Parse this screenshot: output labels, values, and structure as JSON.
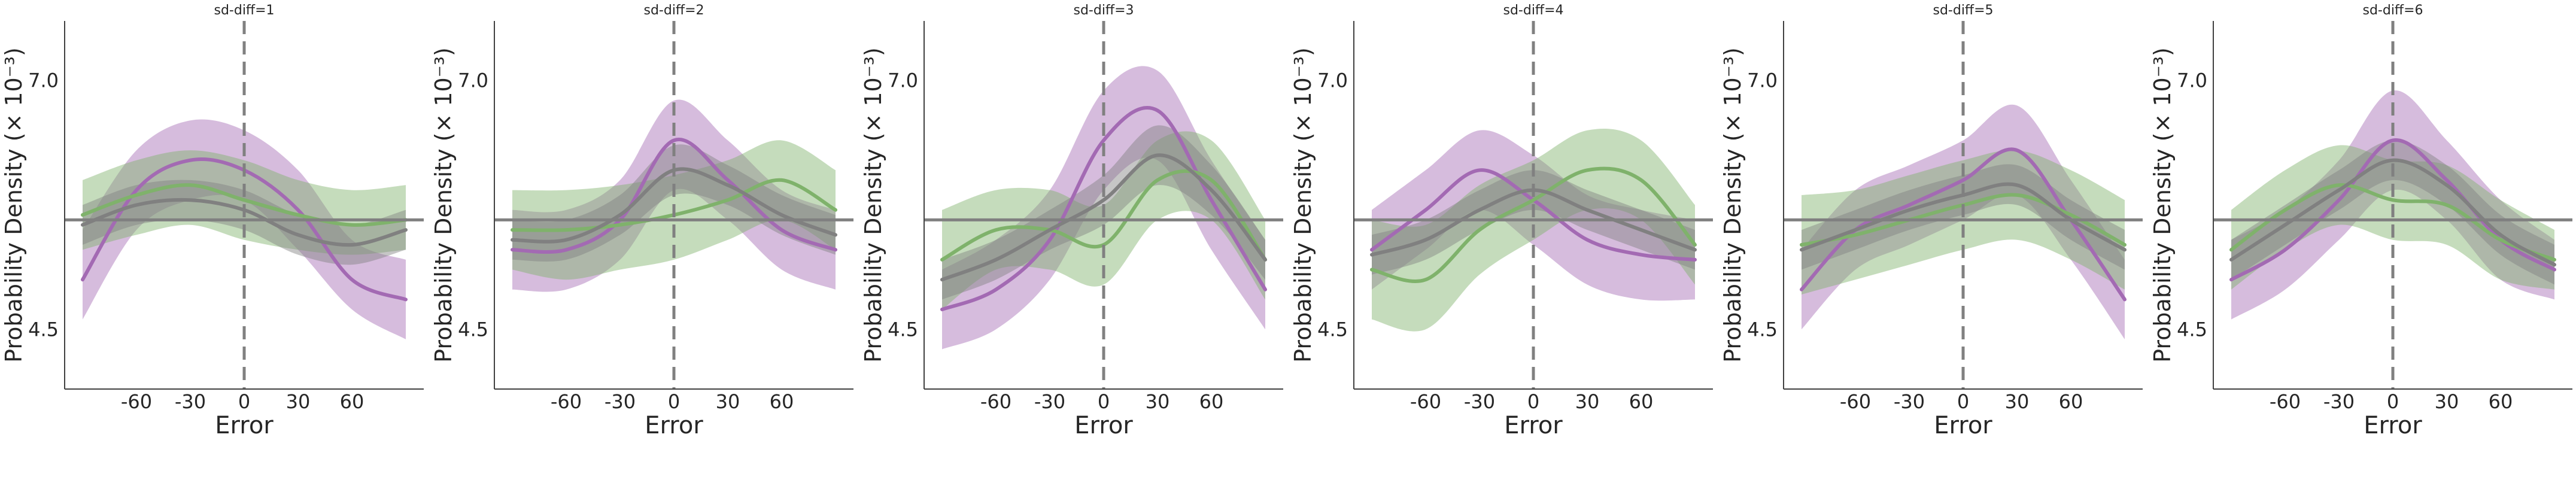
{
  "colors": {
    "purple": "#a36ab3",
    "green": "#7fb26b",
    "gray": "#808080",
    "axis": "#404040"
  },
  "chart_data": [
    {
      "type": "line",
      "title": "sd-diff=1",
      "xlabel": "Error",
      "ylabel": "Probability Density (× 10⁻³)",
      "xlim": [
        -100,
        100
      ],
      "ylim": [
        3.9,
        7.6
      ],
      "xticks": [
        -60,
        -30,
        0,
        30,
        60
      ],
      "yticks": [
        4.5,
        7.0
      ],
      "hline": 5.6,
      "vline": 0,
      "x": [
        -90,
        -60,
        -30,
        0,
        30,
        60,
        90
      ],
      "series": [
        {
          "color": "purple",
          "values": [
            5.0,
            5.9,
            6.2,
            6.1,
            5.7,
            5.0,
            4.8
          ],
          "lower": [
            4.6,
            5.5,
            5.8,
            5.8,
            5.3,
            4.7,
            4.4
          ],
          "upper": [
            5.5,
            6.3,
            6.6,
            6.5,
            6.1,
            5.4,
            5.2
          ]
        },
        {
          "color": "green",
          "values": [
            5.65,
            5.85,
            5.95,
            5.8,
            5.65,
            5.55,
            5.6
          ],
          "lower": [
            5.3,
            5.45,
            5.55,
            5.4,
            5.3,
            5.25,
            5.3
          ],
          "upper": [
            6.0,
            6.2,
            6.3,
            6.2,
            6.0,
            5.9,
            5.95
          ]
        },
        {
          "color": "gray",
          "values": [
            5.55,
            5.75,
            5.8,
            5.7,
            5.45,
            5.35,
            5.5
          ],
          "lower": [
            5.35,
            5.55,
            5.6,
            5.5,
            5.25,
            5.15,
            5.3
          ],
          "upper": [
            5.75,
            5.95,
            6.0,
            5.9,
            5.65,
            5.55,
            5.7
          ]
        }
      ]
    },
    {
      "type": "line",
      "title": "sd-diff=2",
      "xlabel": "Error",
      "ylabel": "Probability Density (× 10⁻³)",
      "xlim": [
        -100,
        100
      ],
      "ylim": [
        3.9,
        7.6
      ],
      "xticks": [
        -60,
        -30,
        0,
        30,
        60
      ],
      "yticks": [
        4.5,
        7.0
      ],
      "hline": 5.6,
      "vline": 0,
      "x": [
        -90,
        -60,
        -30,
        0,
        30,
        60,
        90
      ],
      "series": [
        {
          "color": "purple",
          "values": [
            5.3,
            5.3,
            5.6,
            6.4,
            6.0,
            5.5,
            5.3
          ],
          "lower": [
            4.9,
            4.9,
            5.2,
            5.9,
            5.6,
            5.1,
            4.9
          ],
          "upper": [
            5.7,
            5.7,
            6.0,
            6.8,
            6.4,
            5.9,
            5.7
          ]
        },
        {
          "color": "green",
          "values": [
            5.5,
            5.5,
            5.55,
            5.65,
            5.8,
            6.0,
            5.7
          ],
          "lower": [
            5.1,
            5.0,
            5.1,
            5.2,
            5.4,
            5.6,
            5.3
          ],
          "upper": [
            5.9,
            5.9,
            5.95,
            6.05,
            6.2,
            6.4,
            6.1
          ]
        },
        {
          "color": "gray",
          "values": [
            5.4,
            5.4,
            5.65,
            6.1,
            5.95,
            5.65,
            5.45
          ],
          "lower": [
            5.2,
            5.2,
            5.45,
            5.85,
            5.75,
            5.45,
            5.25
          ],
          "upper": [
            5.6,
            5.6,
            5.85,
            6.35,
            6.15,
            5.85,
            5.65
          ]
        }
      ]
    },
    {
      "type": "line",
      "title": "sd-diff=3",
      "xlabel": "Error",
      "ylabel": "Probability Density (× 10⁻³)",
      "xlim": [
        -100,
        100
      ],
      "ylim": [
        3.9,
        7.6
      ],
      "xticks": [
        -60,
        -30,
        0,
        30,
        60
      ],
      "yticks": [
        4.5,
        7.0
      ],
      "hline": 5.6,
      "vline": 0,
      "x": [
        -90,
        -60,
        -30,
        0,
        30,
        60,
        90
      ],
      "series": [
        {
          "color": "purple",
          "values": [
            4.7,
            4.9,
            5.4,
            6.4,
            6.7,
            5.8,
            4.9
          ],
          "lower": [
            4.3,
            4.5,
            5.0,
            5.9,
            6.2,
            5.3,
            4.5
          ],
          "upper": [
            5.1,
            5.4,
            5.9,
            6.9,
            7.1,
            6.2,
            5.4
          ]
        },
        {
          "color": "green",
          "values": [
            5.2,
            5.5,
            5.5,
            5.35,
            6.0,
            6.0,
            5.2
          ],
          "lower": [
            4.7,
            5.1,
            5.1,
            4.95,
            5.6,
            5.6,
            4.8
          ],
          "upper": [
            5.7,
            5.9,
            5.9,
            5.75,
            6.4,
            6.4,
            5.6
          ]
        },
        {
          "color": "gray",
          "values": [
            5.0,
            5.2,
            5.5,
            5.8,
            6.25,
            5.9,
            5.2
          ],
          "lower": [
            4.8,
            5.0,
            5.3,
            5.55,
            5.95,
            5.65,
            5.0
          ],
          "upper": [
            5.2,
            5.4,
            5.7,
            6.05,
            6.55,
            6.15,
            5.4
          ]
        }
      ]
    },
    {
      "type": "line",
      "title": "sd-diff=4",
      "xlabel": "Error",
      "ylabel": "Probability Density (× 10⁻³)",
      "xlim": [
        -100,
        100
      ],
      "ylim": [
        3.9,
        7.6
      ],
      "xticks": [
        -60,
        -30,
        0,
        30,
        60
      ],
      "yticks": [
        4.5,
        7.0
      ],
      "hline": 5.6,
      "vline": 0,
      "x": [
        -90,
        -60,
        -30,
        0,
        30,
        60,
        90
      ],
      "series": [
        {
          "color": "purple",
          "values": [
            5.3,
            5.7,
            6.1,
            5.8,
            5.4,
            5.25,
            5.2
          ],
          "lower": [
            4.9,
            5.3,
            5.7,
            5.35,
            4.95,
            4.8,
            4.8
          ],
          "upper": [
            5.7,
            6.1,
            6.5,
            6.25,
            5.85,
            5.7,
            5.6
          ]
        },
        {
          "color": "green",
          "values": [
            5.1,
            5.0,
            5.5,
            5.8,
            6.1,
            6.0,
            5.35
          ],
          "lower": [
            4.6,
            4.5,
            5.05,
            5.4,
            5.7,
            5.6,
            4.95
          ],
          "upper": [
            5.6,
            5.55,
            5.95,
            6.2,
            6.5,
            6.4,
            5.75
          ]
        },
        {
          "color": "gray",
          "values": [
            5.25,
            5.4,
            5.7,
            5.9,
            5.7,
            5.5,
            5.3
          ],
          "lower": [
            5.05,
            5.2,
            5.5,
            5.7,
            5.5,
            5.3,
            5.1
          ],
          "upper": [
            5.45,
            5.6,
            5.9,
            6.1,
            5.9,
            5.7,
            5.5
          ]
        }
      ]
    },
    {
      "type": "line",
      "title": "sd-diff=5",
      "xlabel": "Error",
      "ylabel": "Probability Density (× 10⁻³)",
      "xlim": [
        -100,
        100
      ],
      "ylim": [
        3.9,
        7.6
      ],
      "xticks": [
        -60,
        -30,
        0,
        30,
        60
      ],
      "yticks": [
        4.5,
        7.0
      ],
      "hline": 5.6,
      "vline": 0,
      "x": [
        -90,
        -60,
        -30,
        0,
        30,
        60,
        90
      ],
      "series": [
        {
          "color": "purple",
          "values": [
            4.9,
            5.5,
            5.75,
            6.0,
            6.3,
            5.6,
            4.8
          ],
          "lower": [
            4.5,
            5.1,
            5.35,
            5.6,
            5.85,
            5.2,
            4.4
          ],
          "upper": [
            5.3,
            5.9,
            6.15,
            6.4,
            6.75,
            6.0,
            5.2
          ]
        },
        {
          "color": "green",
          "values": [
            5.35,
            5.45,
            5.6,
            5.75,
            5.85,
            5.65,
            5.35
          ],
          "lower": [
            4.85,
            5.0,
            5.15,
            5.3,
            5.4,
            5.2,
            4.9
          ],
          "upper": [
            5.85,
            5.9,
            6.05,
            6.2,
            6.3,
            6.1,
            5.8
          ]
        },
        {
          "color": "gray",
          "values": [
            5.3,
            5.5,
            5.7,
            5.85,
            5.95,
            5.6,
            5.3
          ],
          "lower": [
            5.1,
            5.3,
            5.5,
            5.65,
            5.75,
            5.4,
            5.1
          ],
          "upper": [
            5.5,
            5.7,
            5.9,
            6.05,
            6.15,
            5.8,
            5.5
          ]
        }
      ]
    },
    {
      "type": "line",
      "title": "sd-diff=6",
      "xlabel": "Error",
      "ylabel": "Probability Density (× 10⁻³)",
      "xlim": [
        -100,
        100
      ],
      "ylim": [
        3.9,
        7.6
      ],
      "xticks": [
        -60,
        -30,
        0,
        30,
        60
      ],
      "yticks": [
        4.5,
        7.0
      ],
      "hline": 5.6,
      "vline": 0,
      "x": [
        -90,
        -60,
        -30,
        0,
        30,
        60,
        90
      ],
      "series": [
        {
          "color": "purple",
          "values": [
            5.0,
            5.3,
            5.8,
            6.4,
            6.0,
            5.4,
            5.1
          ],
          "lower": [
            4.6,
            4.9,
            5.4,
            5.9,
            5.6,
            5.0,
            4.8
          ],
          "upper": [
            5.4,
            5.7,
            6.2,
            6.9,
            6.4,
            5.8,
            5.4
          ]
        },
        {
          "color": "green",
          "values": [
            5.3,
            5.7,
            5.95,
            5.8,
            5.75,
            5.4,
            5.2
          ],
          "lower": [
            4.9,
            5.3,
            5.55,
            5.4,
            5.35,
            5.0,
            4.9
          ],
          "upper": [
            5.7,
            6.1,
            6.35,
            6.2,
            6.15,
            5.8,
            5.5
          ]
        },
        {
          "color": "gray",
          "values": [
            5.2,
            5.55,
            5.9,
            6.2,
            5.95,
            5.45,
            5.15
          ],
          "lower": [
            5.0,
            5.35,
            5.7,
            6.0,
            5.75,
            5.25,
            4.95
          ],
          "upper": [
            5.4,
            5.75,
            6.1,
            6.4,
            6.15,
            5.65,
            5.35
          ]
        }
      ]
    }
  ]
}
